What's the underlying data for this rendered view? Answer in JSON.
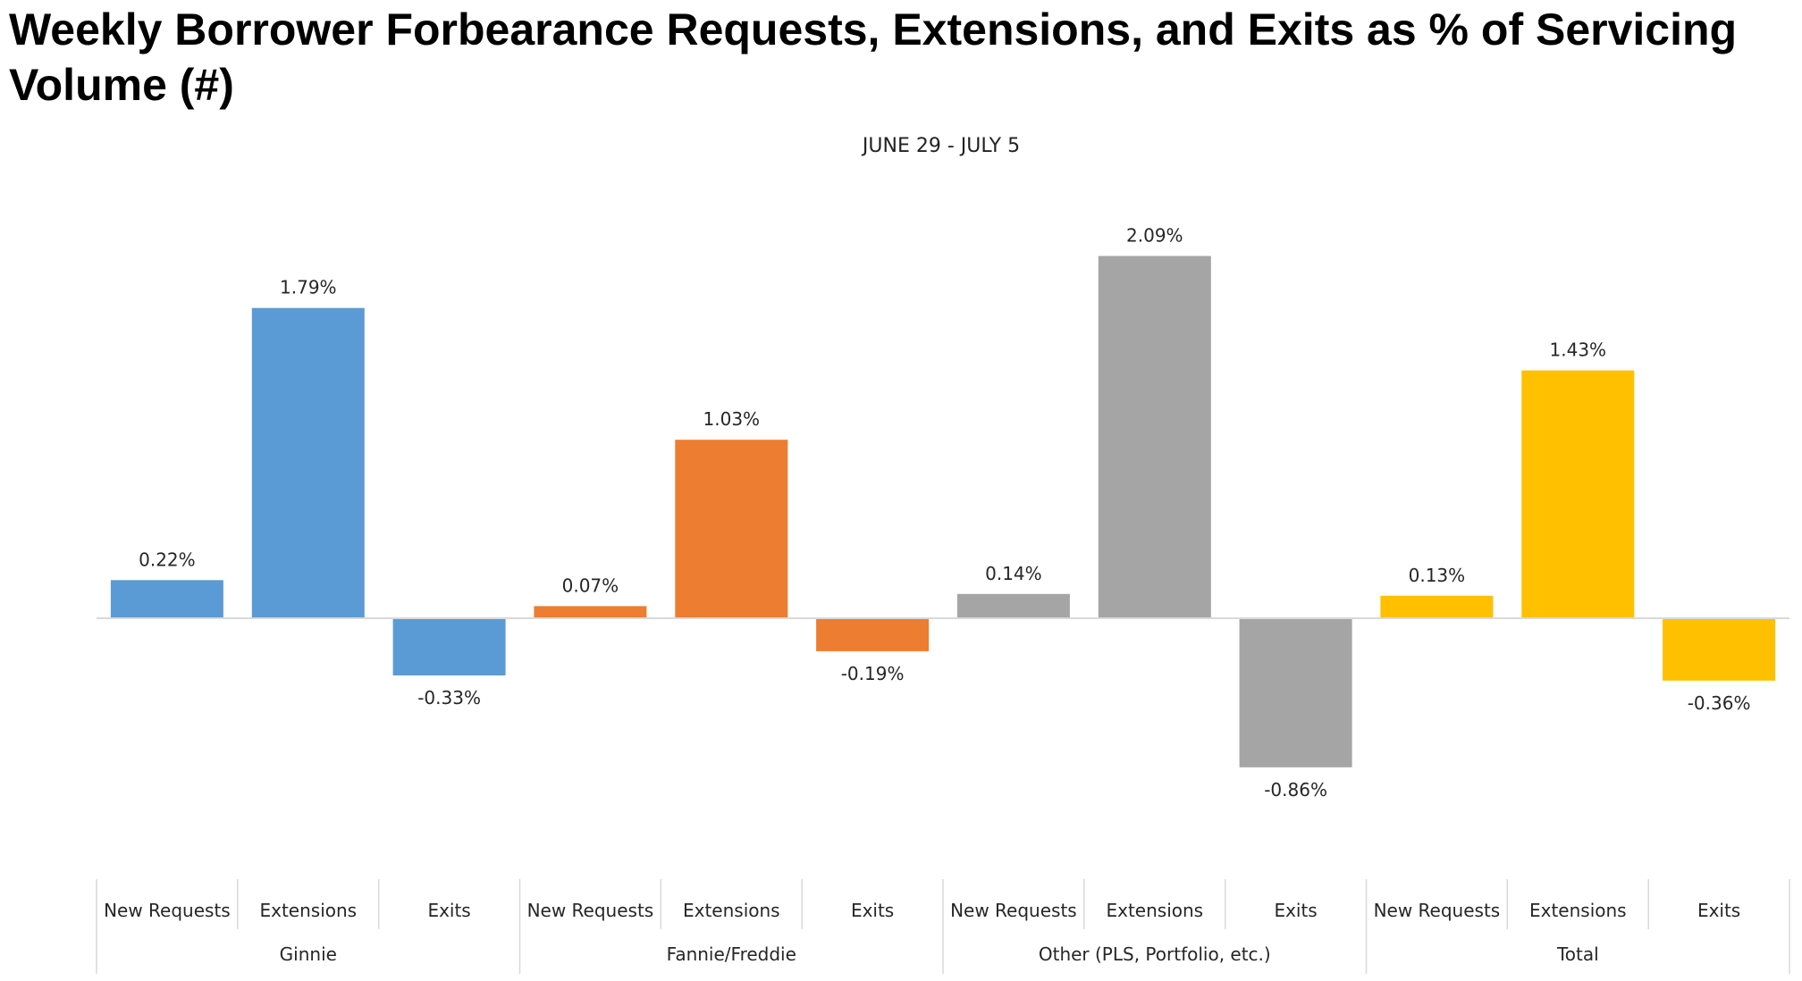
{
  "page": {
    "title": "Weekly Borrower Forbearance Requests, Extensions, and Exits as % of Servicing Volume (#)"
  },
  "chart_data": {
    "type": "bar",
    "title": "Weekly Borrower Forbearance Requests, Extensions, and Exits as % of Servicing Volume (#)",
    "subtitle": "JUNE 29 - JULY 5",
    "xlabel": "",
    "ylabel": "",
    "grid": false,
    "legend": "none",
    "ylim": [
      -1.0,
      2.25
    ],
    "groups": [
      {
        "name": "Ginnie",
        "color": "#5b9bd5",
        "categories": [
          "New Requests",
          "Extensions",
          "Exits"
        ],
        "values": [
          0.22,
          1.79,
          -0.33
        ],
        "labels": [
          "0.22%",
          "1.79%",
          "-0.33%"
        ]
      },
      {
        "name": "Fannie/Freddie",
        "color": "#ed7d31",
        "categories": [
          "New Requests",
          "Extensions",
          "Exits"
        ],
        "values": [
          0.07,
          1.03,
          -0.19
        ],
        "labels": [
          "0.07%",
          "1.03%",
          "-0.19%"
        ]
      },
      {
        "name": "Other (PLS, Portfolio, etc.)",
        "color": "#a5a5a5",
        "categories": [
          "New Requests",
          "Extensions",
          "Exits"
        ],
        "values": [
          0.14,
          2.09,
          -0.86
        ],
        "labels": [
          "0.14%",
          "2.09%",
          "-0.86%"
        ]
      },
      {
        "name": "Total",
        "color": "#ffc000",
        "categories": [
          "New Requests",
          "Extensions",
          "Exits"
        ],
        "values": [
          0.13,
          1.43,
          -0.36
        ],
        "labels": [
          "0.13%",
          "1.43%",
          "-0.36%"
        ]
      }
    ]
  }
}
